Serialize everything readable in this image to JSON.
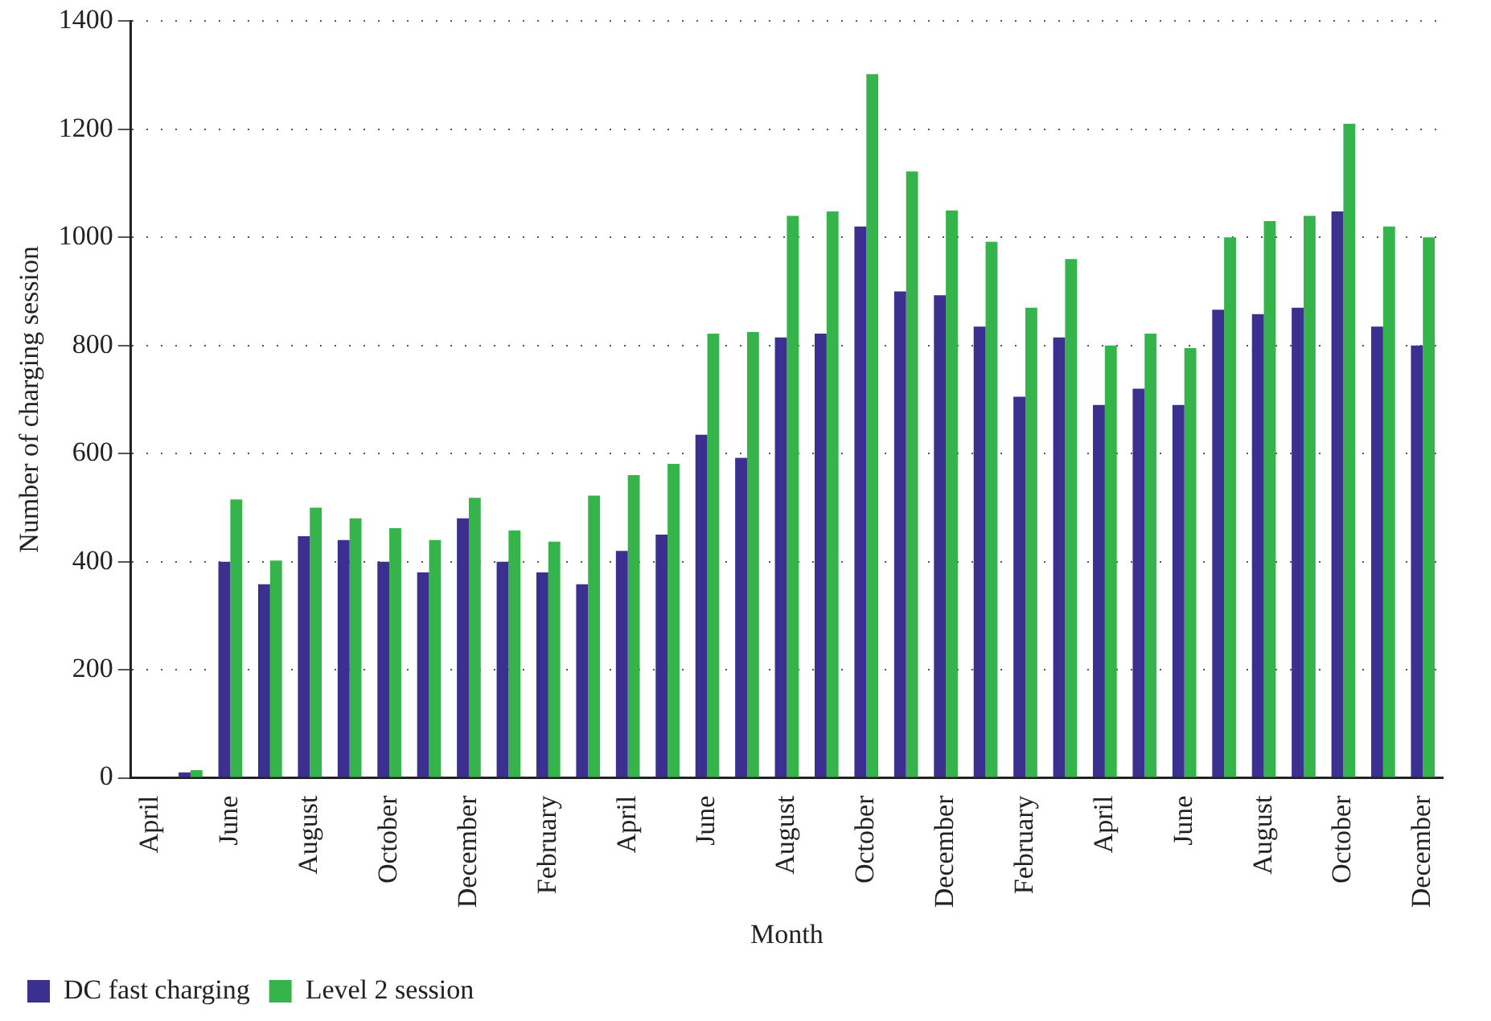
{
  "chart_data": {
    "type": "bar",
    "xlabel": "Month",
    "ylabel": "Number of charging session",
    "categories": [
      "April",
      null,
      "June",
      null,
      "August",
      null,
      "October",
      null,
      "December",
      null,
      "February",
      null,
      "April",
      null,
      "June",
      null,
      "August",
      null,
      "October",
      null,
      "December",
      null,
      "February",
      null,
      "April",
      null,
      "June",
      null,
      "August",
      null,
      "October",
      null,
      "December"
    ],
    "series": [
      {
        "name": "DC fast charging",
        "color": "#3b2f8f",
        "values": [
          0,
          10,
          400,
          358,
          447,
          440,
          400,
          380,
          480,
          400,
          380,
          358,
          420,
          450,
          635,
          592,
          815,
          822,
          1020,
          900,
          893,
          835,
          705,
          815,
          690,
          720,
          690,
          866,
          858,
          870,
          1048,
          835,
          800
        ]
      },
      {
        "name": "Level 2 session",
        "color": "#34b44a",
        "values": [
          0,
          14,
          515,
          402,
          500,
          480,
          462,
          440,
          518,
          458,
          437,
          522,
          560,
          581,
          822,
          825,
          1040,
          1048,
          1302,
          1122,
          1050,
          992,
          870,
          960,
          800,
          822,
          795,
          1000,
          1030,
          1040,
          1210,
          1020,
          1000
        ]
      }
    ],
    "ylim": [
      0,
      1400
    ],
    "yticks": [
      0,
      200,
      400,
      600,
      800,
      1000,
      1200,
      1400
    ],
    "grid": "y",
    "legend": "bottom left"
  }
}
